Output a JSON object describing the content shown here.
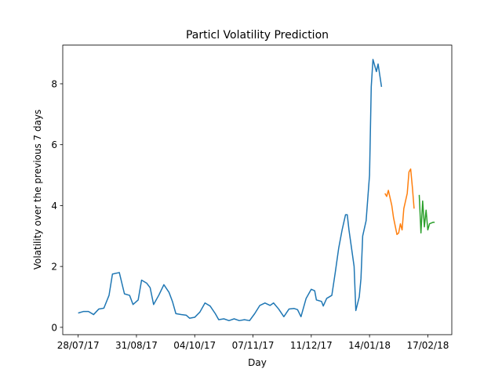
{
  "chart_data": {
    "type": "line",
    "title": "Particl Volatility Prediction",
    "x_label": "Day",
    "y_label": "Volatility over the previous 7 days",
    "xlim": [
      "2017-07-19",
      "2018-03-03"
    ],
    "xticks": [
      {
        "value": "2017-07-28",
        "label": "28/07/17"
      },
      {
        "value": "2017-08-31",
        "label": "31/08/17"
      },
      {
        "value": "2017-10-04",
        "label": "04/10/17"
      },
      {
        "value": "2017-11-07",
        "label": "07/11/17"
      },
      {
        "value": "2017-12-11",
        "label": "11/12/17"
      },
      {
        "value": "2018-01-14",
        "label": "14/01/18"
      },
      {
        "value": "2018-02-17",
        "label": "17/02/18"
      }
    ],
    "ylim": [
      -0.24,
      9.27
    ],
    "yticks": [
      0,
      2,
      4,
      6,
      8
    ],
    "series": [
      {
        "color": "#1f77b4",
        "x": [
          "2017-07-28",
          "2017-07-31",
          "2017-08-03",
          "2017-08-06",
          "2017-08-09",
          "2017-08-12",
          "2017-08-15",
          "2017-08-17",
          "2017-08-21",
          "2017-08-24",
          "2017-08-27",
          "2017-08-29",
          "2017-09-01",
          "2017-09-03",
          "2017-09-06",
          "2017-09-08",
          "2017-09-10",
          "2017-09-13",
          "2017-09-16",
          "2017-09-19",
          "2017-09-21",
          "2017-09-23",
          "2017-09-26",
          "2017-09-29",
          "2017-10-01",
          "2017-10-04",
          "2017-10-07",
          "2017-10-10",
          "2017-10-13",
          "2017-10-16",
          "2017-10-18",
          "2017-10-21",
          "2017-10-24",
          "2017-10-27",
          "2017-10-30",
          "2017-11-02",
          "2017-11-05",
          "2017-11-08",
          "2017-11-11",
          "2017-11-14",
          "2017-11-17",
          "2017-11-19",
          "2017-11-22",
          "2017-11-25",
          "2017-11-28",
          "2017-12-01",
          "2017-12-03",
          "2017-12-05",
          "2017-12-08",
          "2017-12-11",
          "2017-12-13",
          "2017-12-14",
          "2017-12-17",
          "2017-12-18",
          "2017-12-20",
          "2017-12-23",
          "2017-12-25",
          "2017-12-27",
          "2017-12-29",
          "2017-12-31",
          "2018-01-01",
          "2018-01-02",
          "2018-01-05",
          "2018-01-06",
          "2018-01-08",
          "2018-01-09",
          "2018-01-10",
          "2018-01-12",
          "2018-01-14",
          "2018-01-15",
          "2018-01-16",
          "2018-01-18",
          "2018-01-19",
          "2018-01-21"
        ],
        "values": [
          0.47,
          0.52,
          0.52,
          0.42,
          0.6,
          0.63,
          1.05,
          1.75,
          1.8,
          1.1,
          1.05,
          0.75,
          0.9,
          1.55,
          1.45,
          1.3,
          0.75,
          1.05,
          1.4,
          1.15,
          0.85,
          0.45,
          0.42,
          0.4,
          0.3,
          0.33,
          0.5,
          0.8,
          0.7,
          0.45,
          0.25,
          0.28,
          0.22,
          0.28,
          0.22,
          0.25,
          0.22,
          0.45,
          0.72,
          0.8,
          0.72,
          0.8,
          0.6,
          0.35,
          0.6,
          0.62,
          0.58,
          0.35,
          0.95,
          1.25,
          1.2,
          0.9,
          0.85,
          0.7,
          0.95,
          1.05,
          1.8,
          2.6,
          3.2,
          3.7,
          3.7,
          3.2,
          2.0,
          0.55,
          1.0,
          1.6,
          3.0,
          3.5,
          5.0,
          7.9,
          8.8,
          8.4,
          8.65,
          7.9
        ]
      },
      {
        "color": "#ff7f0e",
        "x": [
          "2018-01-23",
          "2018-01-24",
          "2018-01-25",
          "2018-01-27",
          "2018-01-28",
          "2018-01-30",
          "2018-01-31",
          "2018-02-01",
          "2018-02-02",
          "2018-02-03",
          "2018-02-05",
          "2018-02-06",
          "2018-02-07",
          "2018-02-08",
          "2018-02-09"
        ],
        "values": [
          4.4,
          4.3,
          4.5,
          4.0,
          3.6,
          3.05,
          3.1,
          3.4,
          3.2,
          3.9,
          4.4,
          5.1,
          5.2,
          4.6,
          3.9
        ]
      },
      {
        "color": "#2ca02c",
        "x": [
          "2018-02-12",
          "2018-02-13",
          "2018-02-14",
          "2018-02-15",
          "2018-02-16",
          "2018-02-17",
          "2018-02-18",
          "2018-02-20",
          "2018-02-21"
        ],
        "values": [
          4.35,
          3.1,
          4.15,
          3.3,
          3.85,
          3.2,
          3.4,
          3.45,
          3.45
        ]
      }
    ]
  }
}
